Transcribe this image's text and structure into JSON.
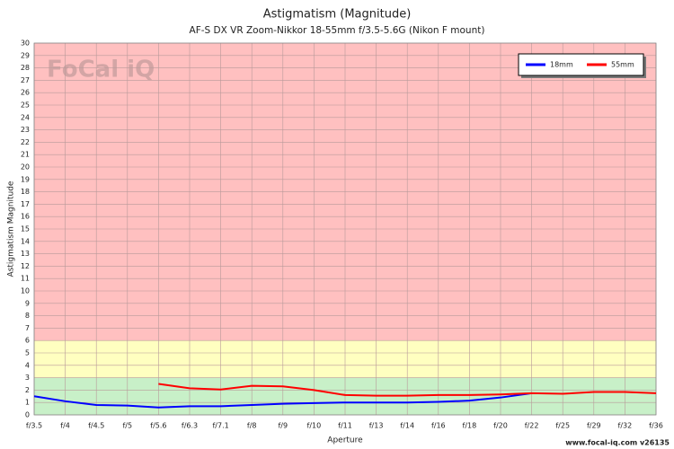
{
  "chart_data": {
    "type": "line",
    "title": "Astigmatism (Magnitude)",
    "subtitle": "AF-S DX VR Zoom-Nikkor 18-55mm f/3.5-5.6G (Nikon F mount)",
    "x_label": "Aperture",
    "y_label": "Astigmatism Magnitude",
    "watermark": "FoCal iQ",
    "footer": "www.focal-iq.com  v26135",
    "categories": [
      "f/3.5",
      "f/4",
      "f/4.5",
      "f/5",
      "f/5.6",
      "f/6.3",
      "f/7.1",
      "f/8",
      "f/9",
      "f/10",
      "f/11",
      "f/13",
      "f/14",
      "f/16",
      "f/18",
      "f/20",
      "f/22",
      "f/25",
      "f/29",
      "f/32",
      "f/36"
    ],
    "series": [
      {
        "name": "18mm",
        "color": "#0000ff",
        "values": [
          1.5,
          1.1,
          0.8,
          0.75,
          0.6,
          0.7,
          0.7,
          0.8,
          0.9,
          0.95,
          1.0,
          1.0,
          1.0,
          1.05,
          1.15,
          1.4,
          1.75,
          null,
          null,
          null,
          null
        ]
      },
      {
        "name": "55mm",
        "color": "#ff0000",
        "values": [
          null,
          null,
          null,
          null,
          2.5,
          2.15,
          2.05,
          2.35,
          2.3,
          2.0,
          1.6,
          1.55,
          1.55,
          1.6,
          1.6,
          1.65,
          1.75,
          1.7,
          1.85,
          1.85,
          1.75
        ]
      }
    ],
    "zones": [
      {
        "from": 0,
        "to": 3,
        "color": "#c8f0c8"
      },
      {
        "from": 3,
        "to": 6,
        "color": "#ffffc0"
      },
      {
        "from": 6,
        "to": 30,
        "color": "#ffc0c0"
      }
    ],
    "ylim": [
      0,
      30
    ],
    "yticks": [
      0,
      1,
      2,
      3,
      4,
      5,
      6,
      7,
      8,
      9,
      10,
      11,
      12,
      13,
      14,
      15,
      16,
      17,
      18,
      19,
      20,
      21,
      22,
      23,
      24,
      25,
      26,
      27,
      28,
      29,
      30
    ],
    "grid": true,
    "legend": "top-right"
  }
}
